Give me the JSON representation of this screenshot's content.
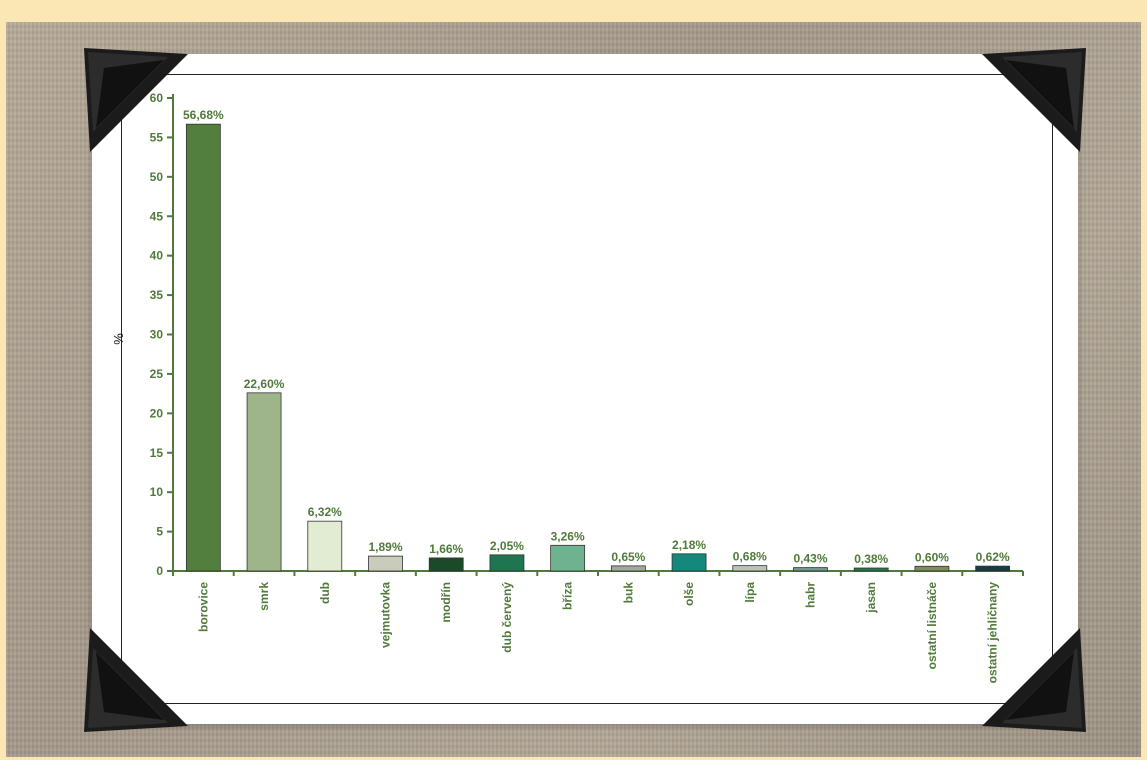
{
  "chart_data": {
    "type": "bar",
    "ylabel": "%",
    "ylim": [
      0,
      60
    ],
    "yticks": [
      0,
      5,
      10,
      15,
      20,
      25,
      30,
      35,
      40,
      45,
      50,
      55,
      60
    ],
    "categories": [
      "borovice",
      "smrk",
      "dub",
      "vejmutovka",
      "modřín",
      "dub červený",
      "bříza",
      "buk",
      "olše",
      "lípa",
      "habr",
      "jasan",
      "ostatní listnáče",
      "ostatní jehličnany"
    ],
    "values": [
      56.68,
      22.6,
      6.32,
      1.89,
      1.66,
      2.05,
      3.26,
      0.65,
      2.18,
      0.68,
      0.43,
      0.38,
      0.6,
      0.62
    ],
    "data_labels": [
      "56,68%",
      "22,60%",
      "6,32%",
      "1,89%",
      "1,66%",
      "2,05%",
      "3,26%",
      "0,65%",
      "2,18%",
      "0,68%",
      "0,43%",
      "0,38%",
      "0,60%",
      "0,62%"
    ],
    "colors": [
      "#537f3e",
      "#9eb48a",
      "#e2ecd2",
      "#c9cbbb",
      "#1a4a2a",
      "#1f7550",
      "#6db38f",
      "#9eaa9c",
      "#12897a",
      "#bcc2b8",
      "#6f9790",
      "#277552",
      "#808a5a",
      "#153d44"
    ],
    "grid": false,
    "legend": "none"
  }
}
